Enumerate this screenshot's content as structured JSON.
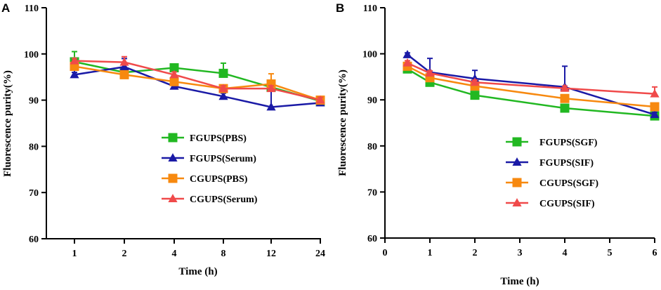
{
  "chart_data": [
    {
      "type": "line",
      "panel": "A",
      "xlabel": "Time (h)",
      "ylabel": "Fluorescence purity(%)",
      "ylim": [
        60,
        110
      ],
      "yticks": [
        60,
        70,
        80,
        90,
        100,
        110
      ],
      "x_scale": "categorical",
      "categories": [
        "1",
        "2",
        "4",
        "8",
        "12",
        "24"
      ],
      "legend_position": "center",
      "series": [
        {
          "name": "FGUPS(PBS)",
          "color": "#22b822",
          "marker": "square",
          "values": [
            98.3,
            96.0,
            97.0,
            95.8,
            92.8,
            89.8
          ],
          "err": [
            2.2,
            0.6,
            0.4,
            2.2,
            1.0,
            0.6
          ]
        },
        {
          "name": "FGUPS(Serum)",
          "color": "#1a1aa6",
          "marker": "triangle",
          "values": [
            95.5,
            97.2,
            93.0,
            90.8,
            88.5,
            89.4
          ],
          "err": [
            0.5,
            1.8,
            0.7,
            0.7,
            3.5,
            0.7
          ]
        },
        {
          "name": "CGUPS(PBS)",
          "color": "#f7890f",
          "marker": "square",
          "values": [
            97.3,
            95.5,
            94.0,
            92.5,
            93.5,
            90.0
          ],
          "err": [
            0.6,
            0.7,
            0.6,
            0.6,
            2.2,
            0.7
          ]
        },
        {
          "name": "CGUPS(Serum)",
          "color": "#f04a4a",
          "marker": "triangle",
          "values": [
            98.5,
            98.2,
            95.5,
            92.5,
            92.5,
            90.0
          ],
          "err": [
            0.5,
            1.2,
            0.6,
            0.6,
            0.6,
            0.6
          ]
        }
      ]
    },
    {
      "type": "line",
      "panel": "B",
      "xlabel": "Time (h)",
      "ylabel": "Fluorescence purity(%)",
      "ylim": [
        60,
        110
      ],
      "yticks": [
        60,
        70,
        80,
        90,
        100,
        110
      ],
      "xlim": [
        0,
        6
      ],
      "xticks": [
        0,
        1,
        2,
        3,
        4,
        5,
        6
      ],
      "legend_position": "center-bottom",
      "series": [
        {
          "name": "FGUPS(SGF)",
          "color": "#22b822",
          "marker": "square",
          "x": [
            0.5,
            1,
            2,
            4,
            6
          ],
          "values": [
            96.7,
            93.8,
            91.0,
            88.2,
            86.5
          ],
          "err": [
            0.5,
            0.5,
            0.5,
            0.5,
            0.5
          ]
        },
        {
          "name": "FGUPS(SIF)",
          "color": "#1a1aa6",
          "marker": "triangle",
          "x": [
            0.5,
            1,
            2,
            4,
            6
          ],
          "values": [
            99.8,
            96.0,
            94.6,
            92.8,
            86.8
          ],
          "err": [
            0.4,
            3.0,
            1.8,
            4.5,
            0.5
          ]
        },
        {
          "name": "CGUPS(SGF)",
          "color": "#f7890f",
          "marker": "square",
          "x": [
            0.5,
            1,
            2,
            4,
            6
          ],
          "values": [
            97.3,
            94.8,
            93.0,
            90.3,
            88.5
          ],
          "err": [
            0.5,
            0.6,
            0.6,
            0.6,
            0.6
          ]
        },
        {
          "name": "CGUPS(SIF)",
          "color": "#f04a4a",
          "marker": "triangle",
          "x": [
            0.5,
            1,
            2,
            4,
            6
          ],
          "values": [
            98.0,
            95.8,
            93.8,
            92.5,
            91.3
          ],
          "err": [
            0.5,
            0.5,
            0.5,
            0.5,
            1.5
          ]
        }
      ]
    }
  ]
}
